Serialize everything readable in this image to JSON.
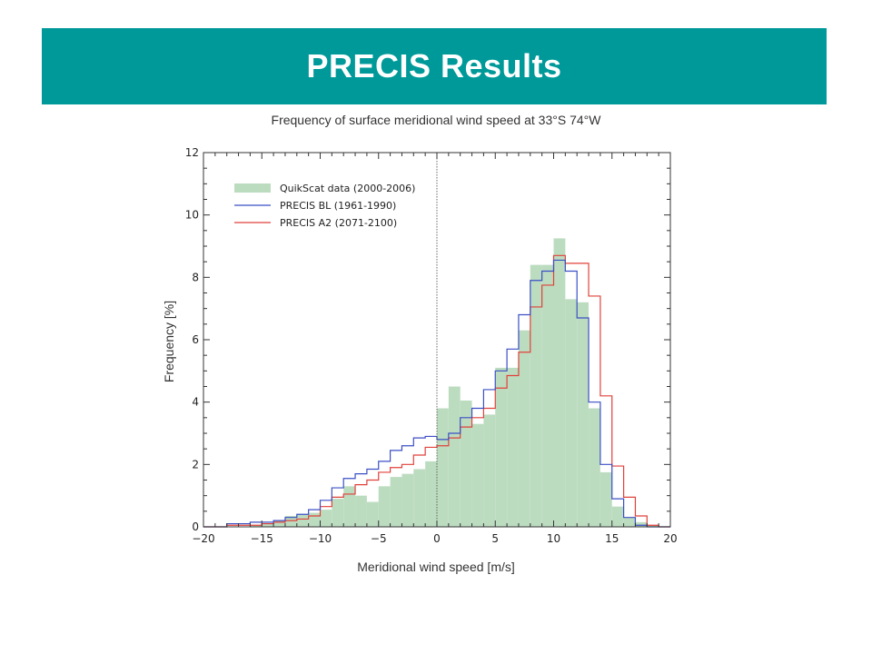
{
  "header": {
    "title": "PRECIS Results"
  },
  "colors": {
    "banner": "#009999",
    "quikscat": "#bcdcc0",
    "baseline": "#3b4fc4",
    "a2": "#e0413a",
    "zero_line": "#444444"
  },
  "chart_data": {
    "type": "bar",
    "title": "Frequency of surface meridional wind speed at 33°S 74°W",
    "xlabel": "Meridional wind speed [m/s]",
    "ylabel": "Frequency [%]",
    "xlim": [
      -20,
      20
    ],
    "ylim": [
      0,
      12
    ],
    "xticks": [
      -20,
      -15,
      -10,
      -5,
      0,
      5,
      10,
      15,
      20
    ],
    "xtick_labels": [
      "−20",
      "−15",
      "−10",
      "−5",
      "0",
      "5",
      "10",
      "15",
      "20"
    ],
    "yticks": [
      0,
      2,
      4,
      6,
      8,
      10,
      12
    ],
    "ytick_labels": [
      "0",
      "2",
      "4",
      "6",
      "8",
      "10",
      "12"
    ],
    "bin_width": 1,
    "bin_edges_start": -20,
    "reference_line_x": 0,
    "legend_position": "top-left",
    "series": [
      {
        "name": "QuikScat data (2000-2006)",
        "style": "filled-histogram",
        "values": [
          0,
          0,
          0,
          0,
          0.05,
          0.1,
          0.2,
          0.35,
          0.4,
          0.45,
          0.55,
          0.9,
          1.3,
          1.0,
          0.8,
          1.3,
          1.6,
          1.7,
          1.85,
          2.1,
          3.8,
          4.5,
          4.05,
          3.3,
          3.6,
          5.1,
          5.1,
          6.3,
          8.4,
          8.4,
          9.25,
          7.3,
          7.2,
          3.8,
          1.75,
          0.65,
          0.3,
          0.15,
          0.05,
          0
        ]
      },
      {
        "name": "PRECIS BL (1961-1990)",
        "style": "step-line",
        "values": [
          0,
          0,
          0.1,
          0.1,
          0.15,
          0.15,
          0.2,
          0.3,
          0.4,
          0.55,
          0.85,
          1.25,
          1.55,
          1.7,
          1.85,
          2.1,
          2.45,
          2.6,
          2.85,
          2.9,
          2.8,
          3.0,
          3.5,
          3.8,
          4.4,
          5.0,
          5.7,
          6.8,
          7.9,
          8.2,
          8.55,
          8.2,
          6.7,
          4.0,
          2.0,
          0.9,
          0.3,
          0.05,
          0,
          0
        ]
      },
      {
        "name": "PRECIS A2 (2071-2100)",
        "style": "step-line",
        "values": [
          0,
          0,
          0.05,
          0.05,
          0.05,
          0.1,
          0.15,
          0.2,
          0.25,
          0.35,
          0.65,
          0.95,
          1.05,
          1.35,
          1.5,
          1.75,
          1.9,
          2.0,
          2.3,
          2.55,
          2.6,
          2.85,
          3.2,
          3.5,
          3.8,
          4.45,
          4.85,
          5.6,
          7.05,
          7.75,
          8.7,
          8.45,
          8.45,
          7.4,
          4.2,
          1.95,
          0.95,
          0.35,
          0.05,
          0
        ]
      }
    ]
  }
}
